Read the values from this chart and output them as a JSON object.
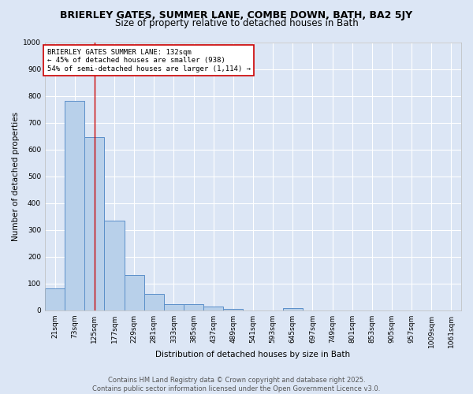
{
  "title": "BRIERLEY GATES, SUMMER LANE, COMBE DOWN, BATH, BA2 5JY",
  "subtitle": "Size of property relative to detached houses in Bath",
  "xlabel": "Distribution of detached houses by size in Bath",
  "ylabel": "Number of detached properties",
  "bar_labels": [
    "21sqm",
    "73sqm",
    "125sqm",
    "177sqm",
    "229sqm",
    "281sqm",
    "333sqm",
    "385sqm",
    "437sqm",
    "489sqm",
    "541sqm",
    "593sqm",
    "645sqm",
    "697sqm",
    "749sqm",
    "801sqm",
    "853sqm",
    "905sqm",
    "957sqm",
    "1009sqm",
    "1061sqm"
  ],
  "bar_values": [
    83,
    780,
    645,
    335,
    133,
    60,
    23,
    22,
    15,
    5,
    0,
    0,
    8,
    0,
    0,
    0,
    0,
    0,
    0,
    0,
    0
  ],
  "bar_color": "#b8d0ea",
  "bar_edge_color": "#5b8fc9",
  "background_color": "#dce6f5",
  "plot_bg_color": "#dce6f5",
  "grid_color": "#ffffff",
  "vline_x": 2,
  "vline_color": "#cc0000",
  "annotation_text": "BRIERLEY GATES SUMMER LANE: 132sqm\n← 45% of detached houses are smaller (938)\n54% of semi-detached houses are larger (1,114) →",
  "annotation_box_color": "#ffffff",
  "annotation_box_edge": "#cc0000",
  "ylim": [
    0,
    1000
  ],
  "yticks": [
    0,
    100,
    200,
    300,
    400,
    500,
    600,
    700,
    800,
    900,
    1000
  ],
  "footer_text": "Contains HM Land Registry data © Crown copyright and database right 2025.\nContains public sector information licensed under the Open Government Licence v3.0.",
  "title_fontsize": 9,
  "subtitle_fontsize": 8.5,
  "axis_label_fontsize": 7.5,
  "tick_fontsize": 6.5,
  "annotation_fontsize": 6.5,
  "footer_fontsize": 6
}
